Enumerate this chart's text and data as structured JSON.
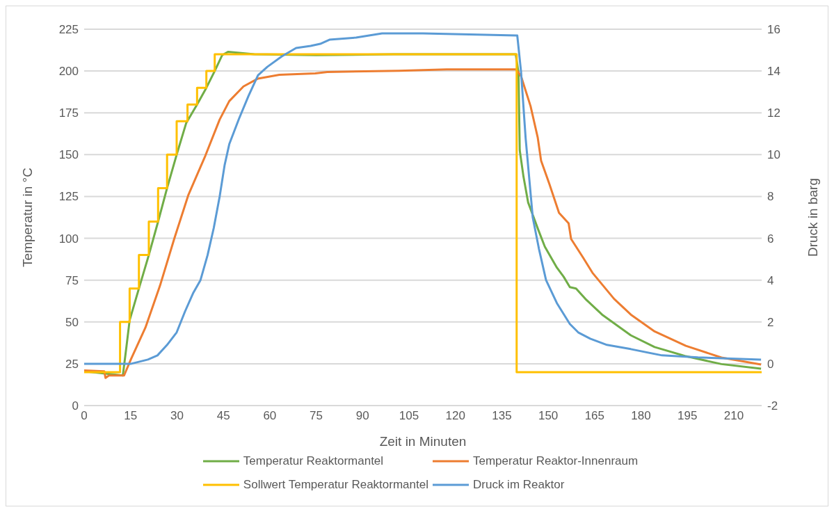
{
  "chart_data": {
    "type": "line",
    "xlabel": "Zeit in Minuten",
    "ylabel": "Temperatur in °C",
    "y2label": "Druck in barg",
    "xlim": [
      0,
      219
    ],
    "xticks": [
      0,
      15,
      30,
      45,
      60,
      75,
      90,
      105,
      120,
      135,
      150,
      165,
      180,
      195,
      210
    ],
    "ylim": [
      0,
      225
    ],
    "yticks": [
      0,
      25,
      50,
      75,
      100,
      125,
      150,
      175,
      200,
      225
    ],
    "y2lim": [
      -2,
      16
    ],
    "y2ticks": [
      -2,
      0,
      2,
      4,
      6,
      8,
      10,
      12,
      14,
      16
    ],
    "grid": true,
    "legend": "bottom",
    "series": [
      {
        "name": "Temperatur Reaktormantel",
        "color": "#70ad47",
        "x": [
          0,
          10,
          12.5,
          13.7,
          14.7,
          17.7,
          20.9,
          23.9,
          26.8,
          29.9,
          33,
          36.5,
          39.5,
          42.2,
          44.6,
          46.5,
          55,
          75,
          100,
          139.5,
          140.4,
          140.8,
          142,
          143.5,
          146.6,
          148.9,
          152.8,
          155,
          157,
          159,
          162,
          167.4,
          176.7,
          184.4,
          194.5,
          206,
          218.8
        ],
        "values": [
          20.5,
          18.5,
          18,
          35.7,
          51,
          70,
          90,
          110,
          130,
          150,
          169,
          180,
          190,
          200,
          209.5,
          211.5,
          210,
          209.5,
          210,
          210,
          199,
          152.6,
          137,
          121.5,
          106,
          95,
          82.5,
          77,
          70.8,
          70,
          63.8,
          54.4,
          42,
          35,
          29.5,
          24.8,
          22
        ]
      },
      {
        "name": "Temperatur Reaktor-Innenraum",
        "color": "#ed7d31",
        "x": [
          0,
          6.5,
          6.9,
          8,
          12.9,
          15.2,
          19.8,
          24.5,
          29.1,
          33.7,
          39.2,
          43.8,
          46.9,
          51.5,
          56.2,
          63.1,
          74.7,
          78.6,
          101.8,
          117.2,
          139.6,
          141.2,
          144.3,
          146.6,
          147.7,
          150.4,
          153.5,
          156.6,
          157.4,
          161.2,
          164.3,
          171.3,
          176.7,
          184.4,
          194.5,
          206,
          218.8
        ],
        "values": [
          21,
          20.5,
          16.5,
          18,
          18,
          28,
          46.6,
          71.6,
          99.6,
          126,
          149.5,
          171,
          182,
          190.8,
          195.5,
          197.8,
          198.6,
          199.4,
          200.2,
          201,
          201,
          197,
          179,
          160.4,
          146.4,
          132.4,
          115.2,
          109,
          99.6,
          88.7,
          79.4,
          63.8,
          54.4,
          44.3,
          35.7,
          28.7,
          24.5
        ]
      },
      {
        "name": "Sollwert Temperatur Reaktormantel",
        "color": "#ffc000",
        "type": "step",
        "x": [
          0,
          11.6,
          14.7,
          17.7,
          20.9,
          23.9,
          26.8,
          29.9,
          33.4,
          36.5,
          39.5,
          42.2,
          139.8,
          219
        ],
        "values": [
          20,
          50,
          70,
          90,
          110,
          130,
          150,
          170,
          180,
          190,
          200,
          210,
          20,
          20
        ]
      },
      {
        "name": "Druck im Reaktor",
        "color": "#5b9bd5",
        "axis": "y2",
        "x": [
          0,
          12.1,
          15.2,
          20.6,
          23.7,
          26.8,
          29.9,
          32.6,
          35.3,
          37.6,
          39.9,
          41.9,
          43.8,
          45.4,
          46.9,
          50,
          53.1,
          56.2,
          59.2,
          63.9,
          68.5,
          73.2,
          76.3,
          79.3,
          87.9,
          96.3,
          109.5,
          139.6,
          140,
          141.2,
          142.7,
          145,
          147,
          149.3,
          152.8,
          157,
          159.7,
          163.6,
          169,
          176.7,
          186.8,
          198.4,
          218.8
        ],
        "values": [
          0,
          0,
          0,
          0.2,
          0.4,
          0.9,
          1.5,
          2.5,
          3.4,
          4,
          5.2,
          6.5,
          8,
          9.5,
          10.5,
          11.7,
          12.8,
          13.8,
          14.2,
          14.7,
          15.1,
          15.2,
          15.3,
          15.5,
          15.6,
          15.8,
          15.8,
          15.7,
          15.7,
          14,
          10.8,
          7,
          5.5,
          4,
          2.9,
          1.9,
          1.5,
          1.2,
          0.9,
          0.7,
          0.4,
          0.3,
          0.2
        ]
      }
    ]
  }
}
